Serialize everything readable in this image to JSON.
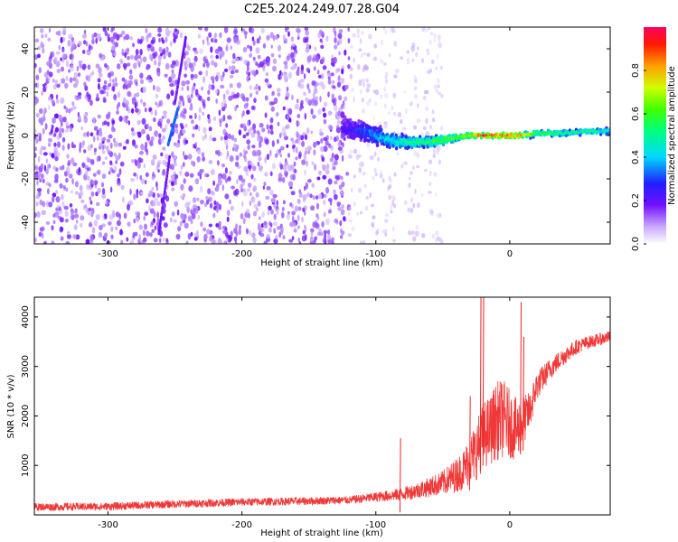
{
  "title": "C2E5.2024.249.07.28.G04",
  "chart_data": [
    {
      "type": "heatmap",
      "xlabel": "Height of straight line (km)",
      "ylabel": "Frequency (Hz)",
      "xlim": [
        -355,
        75
      ],
      "ylim": [
        -50,
        50
      ],
      "xticks": [
        -300,
        -200,
        -100,
        0
      ],
      "yticks": [
        -40,
        -20,
        0,
        20,
        40
      ],
      "colorbar": {
        "label": "Normalized spectral amplitude",
        "range": [
          0,
          1
        ],
        "ticks": [
          "0.0",
          "0.2",
          "0.4",
          "0.6",
          "0.8"
        ],
        "tick_values": [
          0.0,
          0.2,
          0.4,
          0.6,
          0.8
        ]
      },
      "noise_band": {
        "x_range": [
          -355,
          -120
        ],
        "y_range": [
          -50,
          50
        ],
        "amplitude": 0.1
      },
      "sparse_band": {
        "x_range": [
          -120,
          -50
        ],
        "y_range": [
          -50,
          50
        ],
        "amplitude": 0.05
      },
      "signal_trace": {
        "x": [
          -125,
          -110,
          -100,
          -90,
          -80,
          -70,
          -60,
          -50,
          -40,
          -30,
          -20,
          -10,
          0,
          10,
          20,
          40,
          60,
          75
        ],
        "freq_center": [
          3,
          2,
          0,
          -2,
          -3,
          -3,
          -3,
          -2,
          -1,
          0,
          0,
          0,
          0,
          0,
          1,
          1,
          2,
          2
        ],
        "half_width": [
          6,
          6,
          6,
          5,
          4,
          3,
          3,
          3,
          2,
          2,
          1.5,
          1.5,
          2,
          2,
          2,
          2,
          2,
          2
        ],
        "amplitude": [
          0.22,
          0.3,
          0.38,
          0.45,
          0.5,
          0.55,
          0.58,
          0.62,
          0.65,
          0.72,
          0.95,
          0.92,
          0.9,
          0.82,
          0.6,
          0.55,
          0.52,
          0.5
        ]
      },
      "streaks": [
        {
          "x_from": -250,
          "y_from": 15,
          "x_to": -242,
          "y_to": 45,
          "amplitude": 0.15
        },
        {
          "x_from": -255,
          "y_from": -4,
          "x_to": -248,
          "y_to": 12,
          "amplitude": 0.3
        },
        {
          "x_from": -262,
          "y_from": -45,
          "x_to": -254,
          "y_to": -10,
          "amplitude": 0.15
        }
      ]
    },
    {
      "type": "line",
      "xlabel": "Height of straight line (km)",
      "ylabel": "SNR (10 * v/v)",
      "xlim": [
        -355,
        75
      ],
      "ylim": [
        0,
        4400
      ],
      "xticks": [
        -300,
        -200,
        -100,
        0
      ],
      "yticks": [
        1000,
        2000,
        3000,
        4000
      ],
      "series": [
        {
          "color": "#ee2222",
          "x": [
            -355,
            -300,
            -250,
            -200,
            -150,
            -120,
            -100,
            -80,
            -60,
            -50,
            -40,
            -35,
            -30,
            -25,
            -20,
            -15,
            -10,
            -5,
            0,
            5,
            10,
            15,
            20,
            30,
            40,
            50,
            60,
            75
          ],
          "y": [
            160,
            170,
            220,
            260,
            280,
            300,
            360,
            420,
            560,
            650,
            800,
            900,
            1100,
            1300,
            1600,
            1700,
            1900,
            1950,
            1850,
            1700,
            1900,
            2100,
            2600,
            2950,
            3200,
            3400,
            3500,
            3600
          ],
          "noise": [
            80,
            80,
            80,
            80,
            80,
            80,
            100,
            130,
            200,
            250,
            350,
            400,
            500,
            600,
            700,
            700,
            800,
            800,
            700,
            650,
            500,
            400,
            300,
            220,
            180,
            150,
            130,
            120
          ],
          "spikes": [
            {
              "x": -82,
              "y": 1550
            },
            {
              "x": -30,
              "y": 2400
            },
            {
              "x": -22,
              "y": 4400
            },
            {
              "x": -20,
              "y": 4400
            },
            {
              "x": 8,
              "y": 4300
            },
            {
              "x": 10,
              "y": 3600
            }
          ]
        }
      ]
    }
  ]
}
